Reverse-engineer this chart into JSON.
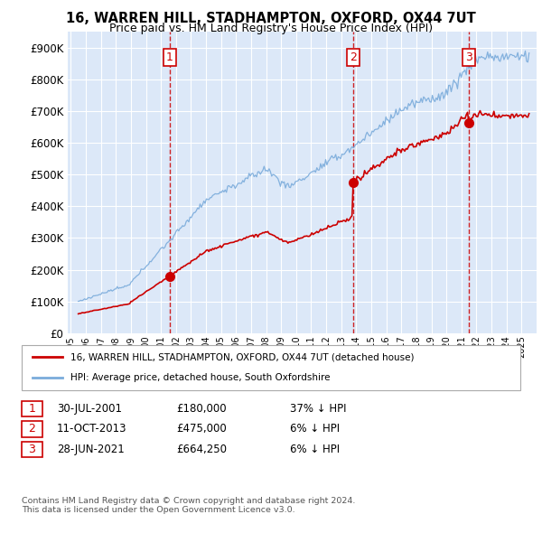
{
  "title": "16, WARREN HILL, STADHAMPTON, OXFORD, OX44 7UT",
  "subtitle": "Price paid vs. HM Land Registry's House Price Index (HPI)",
  "ylim": [
    0,
    950000
  ],
  "yticks": [
    0,
    100000,
    200000,
    300000,
    400000,
    500000,
    600000,
    700000,
    800000,
    900000
  ],
  "ytick_labels": [
    "£0",
    "£100K",
    "£200K",
    "£300K",
    "£400K",
    "£500K",
    "£600K",
    "£700K",
    "£800K",
    "£900K"
  ],
  "background_color": "#ffffff",
  "plot_bg_color": "#dce8f8",
  "grid_color": "#ffffff",
  "sale_dates": [
    2001.58,
    2013.78,
    2021.48
  ],
  "sale_prices": [
    180000,
    475000,
    664250
  ],
  "sale_labels": [
    "1",
    "2",
    "3"
  ],
  "legend_line1": "16, WARREN HILL, STADHAMPTON, OXFORD, OX44 7UT (detached house)",
  "legend_line2": "HPI: Average price, detached house, South Oxfordshire",
  "table_data": [
    [
      "1",
      "30-JUL-2001",
      "£180,000",
      "37% ↓ HPI"
    ],
    [
      "2",
      "11-OCT-2013",
      "£475,000",
      "6% ↓ HPI"
    ],
    [
      "3",
      "28-JUN-2021",
      "£664,250",
      "6% ↓ HPI"
    ]
  ],
  "footnote": "Contains HM Land Registry data © Crown copyright and database right 2024.\nThis data is licensed under the Open Government Licence v3.0.",
  "red_color": "#cc0000",
  "blue_color": "#7aabdb",
  "xstart": 1995.5,
  "xend": 2025.5
}
